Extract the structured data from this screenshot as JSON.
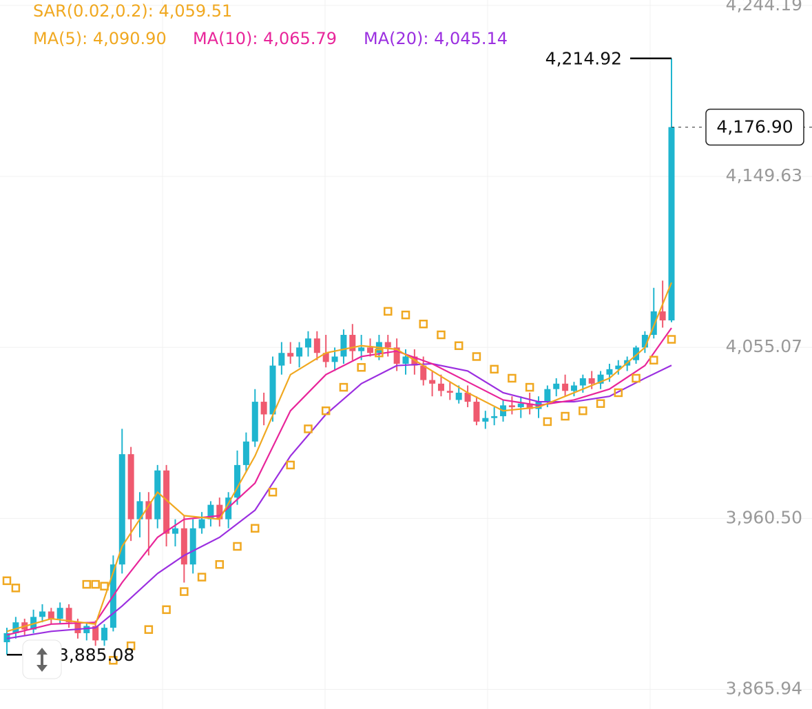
{
  "chart_data": {
    "type": "candlestick",
    "legend": [
      {
        "text": "SAR(0.02,0.2): 4,059.51",
        "color": "#f0a820"
      },
      {
        "text": "MA(5): 4,090.90",
        "color": "#f0a820"
      },
      {
        "text": "MA(10): 4,065.79",
        "color": "#e8259a"
      },
      {
        "text": "MA(20): 4,045.14",
        "color": "#9b2fe0"
      }
    ],
    "up_color": "#1fb5cf",
    "down_color": "#ef5a6f",
    "open": [
      3892,
      3897,
      3903,
      3899,
      3906,
      3909,
      3905,
      3911,
      3903,
      3897,
      3901,
      3893,
      3900,
      3935,
      3996,
      3960,
      3970,
      3960,
      3987,
      3952,
      3955,
      3935,
      3955,
      3960,
      3968,
      3960,
      3972,
      3990,
      4003,
      4025,
      4018,
      4045,
      4052,
      4050,
      4055,
      4060,
      4052,
      4047,
      4050,
      4062,
      4053,
      4055,
      4052,
      4058,
      4055,
      4046,
      4050,
      4045,
      4037,
      4035,
      4031,
      4026,
      4030,
      4025,
      4014,
      4016,
      4017,
      4023,
      4022,
      4024,
      4021,
      4025,
      4032,
      4035,
      4031,
      4034,
      4038,
      4035,
      4040,
      4043,
      4045,
      4048,
      4055,
      4062,
      4075,
      4070
    ],
    "high": [
      3900,
      3906,
      3905,
      3910,
      3913,
      3911,
      3914,
      3913,
      3905,
      3903,
      3904,
      3902,
      3940,
      4010,
      4000,
      3975,
      3975,
      3990,
      3990,
      3960,
      3962,
      3960,
      3964,
      3970,
      3972,
      3975,
      3998,
      4008,
      4032,
      4030,
      4050,
      4058,
      4058,
      4058,
      4064,
      4064,
      4062,
      4055,
      4065,
      4068,
      4062,
      4060,
      4062,
      4062,
      4060,
      4054,
      4054,
      4050,
      4042,
      4040,
      4036,
      4034,
      4034,
      4028,
      4020,
      4022,
      4026,
      4028,
      4028,
      4030,
      4028,
      4034,
      4038,
      4040,
      4036,
      4040,
      4042,
      4042,
      4046,
      4048,
      4050,
      4056,
      4064,
      4088,
      4092,
      4214.92
    ],
    "low": [
      3885.08,
      3894,
      3896,
      3897,
      3903,
      3902,
      3902,
      3900,
      3894,
      3893,
      3890,
      3890,
      3898,
      3930,
      3948,
      3950,
      3940,
      3955,
      3945,
      3945,
      3925,
      3930,
      3952,
      3956,
      3956,
      3955,
      3968,
      3986,
      4000,
      4012,
      4014,
      4040,
      4046,
      4044,
      4050,
      4048,
      4044,
      4042,
      4046,
      4048,
      4048,
      4050,
      4048,
      4050,
      4042,
      4040,
      4040,
      4034,
      4028,
      4028,
      4026,
      4024,
      4022,
      4012,
      4010,
      4012,
      4014,
      4018,
      4016,
      4018,
      4016,
      4022,
      4028,
      4028,
      4028,
      4030,
      4032,
      4032,
      4036,
      4040,
      4042,
      4046,
      4052,
      4060,
      4066,
      4069
    ],
    "close": [
      3897,
      3903,
      3899,
      3906,
      3909,
      3905,
      3911,
      3903,
      3897,
      3901,
      3893,
      3900,
      3935,
      3996,
      3960,
      3970,
      3960,
      3987,
      3952,
      3955,
      3935,
      3955,
      3960,
      3968,
      3960,
      3972,
      3990,
      4003,
      4025,
      4018,
      4045,
      4052,
      4050,
      4055,
      4060,
      4052,
      4047,
      4050,
      4062,
      4053,
      4055,
      4052,
      4058,
      4055,
      4046,
      4050,
      4045,
      4037,
      4035,
      4031,
      4030,
      4030,
      4025,
      4014,
      4016,
      4017,
      4023,
      4022,
      4024,
      4021,
      4025,
      4032,
      4035,
      4031,
      4034,
      4038,
      4035,
      4040,
      4043,
      4045,
      4048,
      4055,
      4062,
      4075,
      4070,
      4176.9
    ],
    "lines": [
      {
        "color": "#9b2fe0",
        "x": [
          0,
          5,
          10,
          13,
          17,
          20,
          24,
          28,
          32,
          36,
          40,
          44,
          48,
          52,
          56,
          60,
          64,
          68,
          72,
          75
        ],
        "values": [
          3894,
          3898,
          3900,
          3912,
          3930,
          3940,
          3950,
          3965,
          3995,
          4018,
          4035,
          4045,
          4046,
          4042,
          4030,
          4025,
          4025,
          4028,
          4038,
          4045.14
        ]
      },
      {
        "color": "#e8259a",
        "x": [
          0,
          5,
          10,
          13,
          17,
          20,
          24,
          28,
          32,
          36,
          40,
          44,
          48,
          52,
          56,
          60,
          64,
          68,
          72,
          75
        ],
        "values": [
          3896,
          3902,
          3903,
          3925,
          3950,
          3960,
          3962,
          3980,
          4020,
          4040,
          4050,
          4053,
          4046,
          4036,
          4026,
          4023,
          4026,
          4032,
          4045,
          4065.79
        ]
      },
      {
        "color": "#f0a820",
        "x": [
          0,
          5,
          10,
          13,
          17,
          20,
          24,
          28,
          32,
          36,
          40,
          44,
          48,
          52,
          56,
          60,
          64,
          68,
          72,
          75
        ],
        "values": [
          3898,
          3905,
          3902,
          3945,
          3975,
          3962,
          3960,
          3995,
          4040,
          4052,
          4056,
          4054,
          4042,
          4030,
          4020,
          4022,
          4030,
          4038,
          4055,
          4090.9
        ]
      }
    ],
    "sar": {
      "color": "#f0a820",
      "x": [
        0,
        1,
        9,
        10,
        11,
        12,
        14,
        16,
        18,
        20,
        22,
        24,
        26,
        28,
        30,
        32,
        34,
        36,
        38,
        40,
        42,
        43,
        45,
        47,
        49,
        51,
        53,
        55,
        57,
        59,
        61,
        63,
        65,
        67,
        69,
        71,
        73,
        75
      ],
      "values": [
        3926,
        3922,
        3924,
        3924,
        3923,
        3882,
        3890,
        3899,
        3910,
        3920,
        3928,
        3935,
        3945,
        3955,
        3975,
        3990,
        4010,
        4020,
        4033,
        4044,
        4052,
        4075,
        4073,
        4068,
        4062,
        4056,
        4050,
        4043,
        4038,
        4033,
        4014,
        4017,
        4020,
        4024,
        4030,
        4038,
        4048,
        4059.51
      ]
    },
    "high_label": "4,214.92",
    "low_label": "3,885.08",
    "last_price_label": "4,176.90",
    "ylim": [
      3855.06,
      4247.2
    ],
    "yticks": [
      {
        "value": 3865.94,
        "label": "3,865.94"
      },
      {
        "value": 3960.5,
        "label": "3,960.50"
      },
      {
        "value": 4055.07,
        "label": "4,055.07"
      },
      {
        "value": 4149.63,
        "label": "4,149.63"
      },
      {
        "value": 4244.19,
        "label": "4,244.19"
      }
    ],
    "grid": true
  }
}
